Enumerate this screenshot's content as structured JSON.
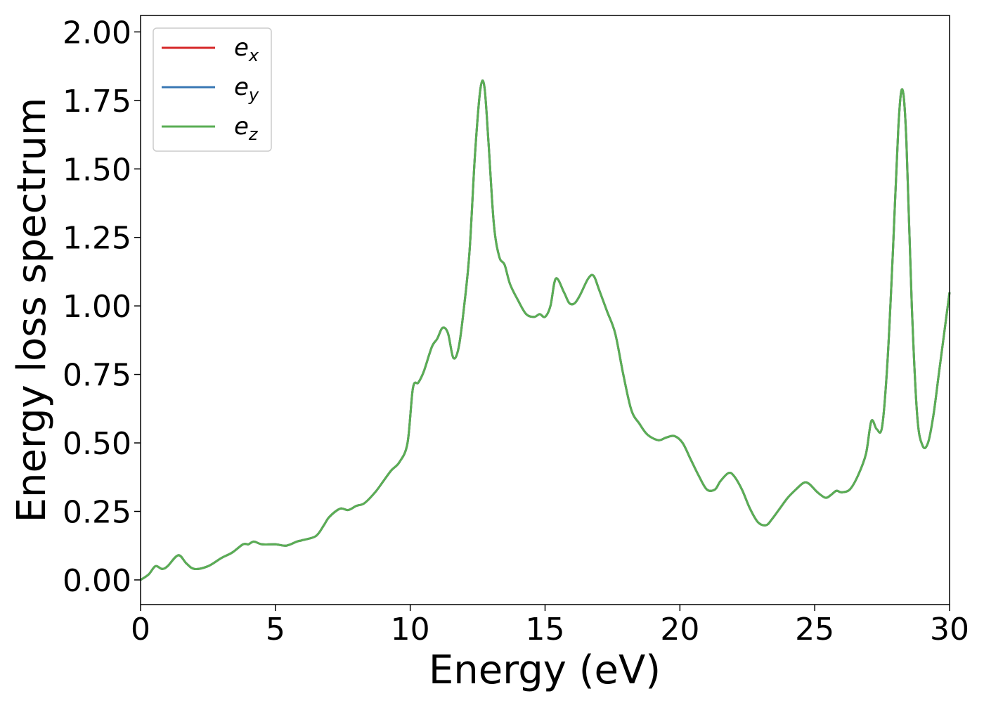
{
  "chart_data": {
    "type": "line",
    "xlabel": "Energy (eV)",
    "ylabel": "Energy loss spectrum",
    "xlim": [
      0,
      30
    ],
    "ylim": [
      -0.09,
      2.06
    ],
    "xticks": [
      0,
      5,
      10,
      15,
      20,
      25,
      30
    ],
    "xtick_labels": [
      "0",
      "5",
      "10",
      "15",
      "20",
      "25",
      "30"
    ],
    "yticks": [
      0,
      0.25,
      0.5,
      0.75,
      1.0,
      1.25,
      1.5,
      1.75,
      2.0
    ],
    "ytick_labels": [
      "0.00",
      "0.25",
      "0.50",
      "0.75",
      "1.00",
      "1.25",
      "1.50",
      "1.75",
      "2.00"
    ],
    "grid": false,
    "legend_position": "top-left",
    "x": [
      0,
      0.3,
      0.55,
      0.8,
      1.0,
      1.4,
      1.7,
      2.0,
      2.5,
      3.0,
      3.4,
      3.8,
      4.0,
      4.2,
      4.5,
      5.0,
      5.4,
      5.8,
      6.0,
      6.5,
      6.8,
      7.0,
      7.4,
      7.7,
      8.0,
      8.3,
      8.7,
      9.0,
      9.3,
      9.6,
      9.9,
      10.1,
      10.3,
      10.5,
      10.8,
      11.0,
      11.2,
      11.4,
      11.6,
      11.8,
      12.0,
      12.2,
      12.4,
      12.6,
      12.75,
      12.9,
      13.1,
      13.3,
      13.5,
      13.7,
      14.0,
      14.3,
      14.6,
      14.8,
      15.0,
      15.2,
      15.4,
      15.7,
      15.9,
      16.1,
      16.3,
      16.6,
      16.8,
      17.0,
      17.3,
      17.6,
      17.9,
      18.2,
      18.5,
      18.8,
      19.2,
      19.5,
      19.8,
      20.1,
      20.4,
      20.7,
      21.0,
      21.3,
      21.5,
      21.8,
      22.0,
      22.3,
      22.6,
      22.9,
      23.2,
      23.4,
      23.7,
      24.0,
      24.3,
      24.6,
      24.8,
      25.1,
      25.4,
      25.6,
      25.8,
      26.0,
      26.3,
      26.6,
      26.9,
      27.1,
      27.3,
      27.5,
      27.7,
      27.9,
      28.1,
      28.25,
      28.4,
      28.6,
      28.8,
      29.0,
      29.2,
      29.4,
      29.6,
      29.8,
      30.0
    ],
    "series": [
      {
        "name": "e_x",
        "color": "#d62728",
        "values": [
          0.0,
          0.02,
          0.05,
          0.04,
          0.05,
          0.09,
          0.06,
          0.04,
          0.05,
          0.08,
          0.1,
          0.13,
          0.13,
          0.14,
          0.13,
          0.13,
          0.125,
          0.14,
          0.145,
          0.16,
          0.2,
          0.23,
          0.26,
          0.255,
          0.27,
          0.28,
          0.32,
          0.36,
          0.4,
          0.43,
          0.5,
          0.7,
          0.72,
          0.76,
          0.85,
          0.88,
          0.92,
          0.9,
          0.81,
          0.85,
          1.0,
          1.2,
          1.55,
          1.79,
          1.8,
          1.6,
          1.3,
          1.18,
          1.15,
          1.08,
          1.02,
          0.97,
          0.96,
          0.97,
          0.96,
          1.0,
          1.1,
          1.05,
          1.01,
          1.01,
          1.04,
          1.1,
          1.11,
          1.06,
          0.98,
          0.9,
          0.75,
          0.62,
          0.57,
          0.53,
          0.51,
          0.52,
          0.525,
          0.5,
          0.44,
          0.38,
          0.33,
          0.33,
          0.36,
          0.39,
          0.38,
          0.33,
          0.26,
          0.21,
          0.2,
          0.22,
          0.26,
          0.3,
          0.33,
          0.355,
          0.35,
          0.32,
          0.3,
          0.31,
          0.325,
          0.32,
          0.33,
          0.38,
          0.46,
          0.58,
          0.55,
          0.56,
          0.8,
          1.2,
          1.65,
          1.79,
          1.6,
          1.0,
          0.6,
          0.49,
          0.5,
          0.6,
          0.75,
          0.9,
          1.05
        ]
      },
      {
        "name": "e_y",
        "color": "#3a78b4",
        "values": [
          0.0,
          0.02,
          0.05,
          0.04,
          0.05,
          0.09,
          0.06,
          0.04,
          0.05,
          0.08,
          0.1,
          0.13,
          0.13,
          0.14,
          0.13,
          0.13,
          0.125,
          0.14,
          0.145,
          0.16,
          0.2,
          0.23,
          0.26,
          0.255,
          0.27,
          0.28,
          0.32,
          0.36,
          0.4,
          0.43,
          0.5,
          0.7,
          0.72,
          0.76,
          0.85,
          0.88,
          0.92,
          0.9,
          0.81,
          0.85,
          1.0,
          1.2,
          1.55,
          1.79,
          1.8,
          1.6,
          1.3,
          1.18,
          1.15,
          1.08,
          1.02,
          0.97,
          0.96,
          0.97,
          0.96,
          1.0,
          1.1,
          1.05,
          1.01,
          1.01,
          1.04,
          1.1,
          1.11,
          1.06,
          0.98,
          0.9,
          0.75,
          0.62,
          0.57,
          0.53,
          0.51,
          0.52,
          0.525,
          0.5,
          0.44,
          0.38,
          0.33,
          0.33,
          0.36,
          0.39,
          0.38,
          0.33,
          0.26,
          0.21,
          0.2,
          0.22,
          0.26,
          0.3,
          0.33,
          0.355,
          0.35,
          0.32,
          0.3,
          0.31,
          0.325,
          0.32,
          0.33,
          0.38,
          0.46,
          0.58,
          0.55,
          0.56,
          0.8,
          1.2,
          1.65,
          1.79,
          1.6,
          1.0,
          0.6,
          0.49,
          0.5,
          0.6,
          0.75,
          0.9,
          1.05
        ]
      },
      {
        "name": "e_z",
        "color": "#5aae54",
        "values": [
          0.0,
          0.02,
          0.05,
          0.04,
          0.05,
          0.09,
          0.06,
          0.04,
          0.05,
          0.08,
          0.1,
          0.13,
          0.13,
          0.14,
          0.13,
          0.13,
          0.125,
          0.14,
          0.145,
          0.16,
          0.2,
          0.23,
          0.26,
          0.255,
          0.27,
          0.28,
          0.32,
          0.36,
          0.4,
          0.43,
          0.5,
          0.7,
          0.72,
          0.76,
          0.85,
          0.88,
          0.92,
          0.9,
          0.81,
          0.85,
          1.0,
          1.2,
          1.55,
          1.79,
          1.8,
          1.6,
          1.3,
          1.18,
          1.15,
          1.08,
          1.02,
          0.97,
          0.96,
          0.97,
          0.96,
          1.0,
          1.1,
          1.05,
          1.01,
          1.01,
          1.04,
          1.1,
          1.11,
          1.06,
          0.98,
          0.9,
          0.75,
          0.62,
          0.57,
          0.53,
          0.51,
          0.52,
          0.525,
          0.5,
          0.44,
          0.38,
          0.33,
          0.33,
          0.36,
          0.39,
          0.38,
          0.33,
          0.26,
          0.21,
          0.2,
          0.22,
          0.26,
          0.3,
          0.33,
          0.355,
          0.35,
          0.32,
          0.3,
          0.31,
          0.325,
          0.32,
          0.33,
          0.38,
          0.46,
          0.58,
          0.55,
          0.56,
          0.8,
          1.2,
          1.65,
          1.79,
          1.6,
          1.0,
          0.6,
          0.49,
          0.5,
          0.6,
          0.75,
          0.9,
          1.05
        ]
      }
    ],
    "legend": [
      {
        "base": "e",
        "sub": "x",
        "color": "#d62728"
      },
      {
        "base": "e",
        "sub": "y",
        "color": "#3a78b4"
      },
      {
        "base": "e",
        "sub": "z",
        "color": "#5aae54"
      }
    ]
  }
}
